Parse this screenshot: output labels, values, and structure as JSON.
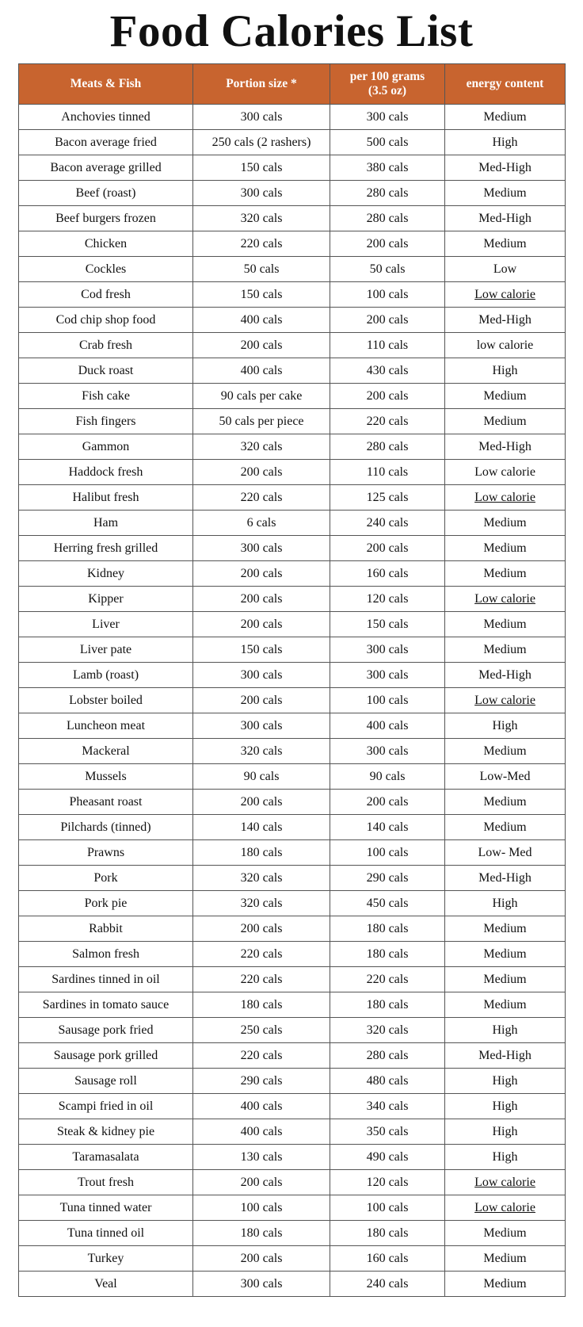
{
  "title": "Food Calories List",
  "header_color": "#C8642F",
  "columns": [
    "Meats & Fish",
    "Portion size *",
    "per 100 grams\n(3.5 oz)",
    "energy content"
  ],
  "rows": [
    [
      "Anchovies tinned",
      "300 cals",
      "300 cals",
      "Medium"
    ],
    [
      "Bacon average fried",
      "250 cals (2 rashers)",
      "500 cals",
      "High"
    ],
    [
      "Bacon average grilled",
      "150 cals",
      "380 cals",
      "Med-High"
    ],
    [
      "Beef (roast)",
      "300 cals",
      "280 cals",
      "Medium"
    ],
    [
      "Beef burgers frozen",
      "320 cals",
      "280 cals",
      "Med-High"
    ],
    [
      "Chicken",
      "220 cals",
      "200 cals",
      "Medium"
    ],
    [
      "Cockles",
      "50 cals",
      "50 cals",
      "Low"
    ],
    [
      "Cod fresh",
      "150 cals",
      "100 cals",
      "Low calorie"
    ],
    [
      "Cod chip shop food",
      "400 cals",
      "200 cals",
      "Med-High"
    ],
    [
      "Crab fresh",
      "200 cals",
      "110 cals",
      "low calorie"
    ],
    [
      "Duck roast",
      "400 cals",
      "430 cals",
      "High"
    ],
    [
      "Fish cake",
      "90 cals per cake",
      "200 cals",
      "Medium"
    ],
    [
      "Fish fingers",
      "50 cals per piece",
      "220 cals",
      "Medium"
    ],
    [
      "Gammon",
      "320 cals",
      "280 cals",
      "Med-High"
    ],
    [
      "Haddock fresh",
      "200 cals",
      "110 cals",
      "Low calorie"
    ],
    [
      "Halibut fresh",
      "220 cals",
      "125 cals",
      "Low calorie"
    ],
    [
      "Ham",
      "6 cals",
      "240 cals",
      "Medium"
    ],
    [
      "Herring fresh grilled",
      "300 cals",
      "200 cals",
      "Medium"
    ],
    [
      "Kidney",
      "200 cals",
      "160 cals",
      "Medium"
    ],
    [
      "Kipper",
      "200 cals",
      "120 cals",
      "Low calorie"
    ],
    [
      "Liver",
      "200 cals",
      "150 cals",
      "Medium"
    ],
    [
      "Liver pate",
      "150 cals",
      "300 cals",
      "Medium"
    ],
    [
      "Lamb (roast)",
      "300 cals",
      "300 cals",
      "Med-High"
    ],
    [
      "Lobster boiled",
      "200 cals",
      "100 cals",
      "Low calorie"
    ],
    [
      "Luncheon meat",
      "300 cals",
      "400 cals",
      "High"
    ],
    [
      "Mackeral",
      "320 cals",
      "300 cals",
      "Medium"
    ],
    [
      "Mussels",
      "90 cals",
      "90 cals",
      "Low-Med"
    ],
    [
      "Pheasant roast",
      "200 cals",
      "200 cals",
      "Medium"
    ],
    [
      "Pilchards (tinned)",
      "140 cals",
      "140 cals",
      "Medium"
    ],
    [
      "Prawns",
      "180 cals",
      "100 cals",
      "Low- Med"
    ],
    [
      "Pork",
      "320 cals",
      "290 cals",
      "Med-High"
    ],
    [
      "Pork pie",
      "320 cals",
      "450 cals",
      "High"
    ],
    [
      "Rabbit",
      "200 cals",
      "180 cals",
      "Medium"
    ],
    [
      "Salmon fresh",
      "220 cals",
      "180 cals",
      "Medium"
    ],
    [
      "Sardines tinned in oil",
      "220 cals",
      "220 cals",
      "Medium"
    ],
    [
      "Sardines in tomato sauce",
      "180 cals",
      "180 cals",
      "Medium"
    ],
    [
      "Sausage pork fried",
      "250 cals",
      "320 cals",
      "High"
    ],
    [
      "Sausage pork grilled",
      "220 cals",
      "280 cals",
      "Med-High"
    ],
    [
      "Sausage roll",
      "290 cals",
      "480 cals",
      "High"
    ],
    [
      "Scampi fried in oil",
      "400 cals",
      "340 cals",
      "High"
    ],
    [
      "Steak & kidney pie",
      "400 cals",
      "350 cals",
      "High"
    ],
    [
      "Taramasalata",
      "130 cals",
      "490 cals",
      "High"
    ],
    [
      "Trout fresh",
      "200 cals",
      "120 cals",
      "Low calorie"
    ],
    [
      "Tuna tinned water",
      "100 cals",
      "100 cals",
      "Low calorie"
    ],
    [
      "Tuna tinned oil",
      "180 cals",
      "180 cals",
      "Medium"
    ],
    [
      "Turkey",
      "200 cals",
      "160 cals",
      "Medium"
    ],
    [
      "Veal",
      "300 cals",
      "240 cals",
      "Medium"
    ]
  ],
  "underlined_rows": [
    "Cod fresh",
    "Halibut fresh",
    "Kipper",
    "Lobster boiled",
    "Trout fresh",
    "Tuna tinned water"
  ]
}
